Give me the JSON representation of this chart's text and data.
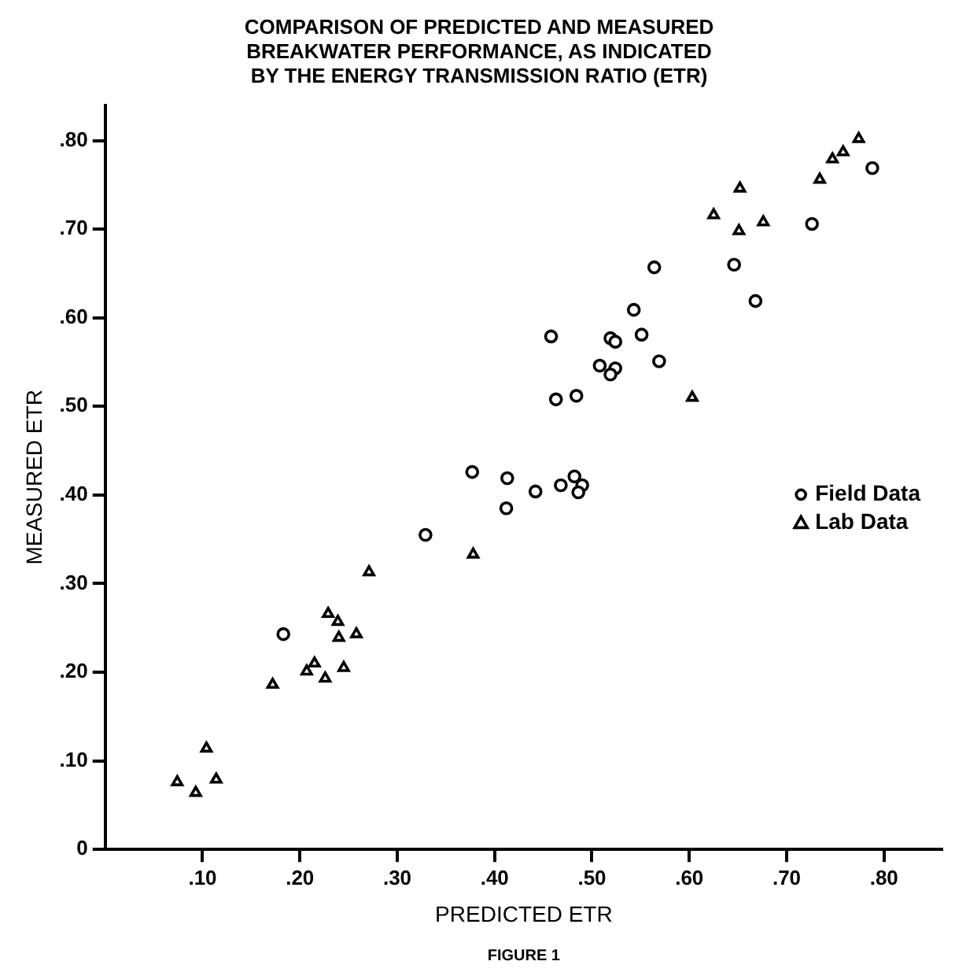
{
  "chart_data": {
    "type": "scatter",
    "title": "COMPARISON OF PREDICTED AND MEASURED\nBREAKWATER PERFORMANCE, AS INDICATED\nBY THE ENERGY TRANSMISSION RATIO (ETR)",
    "xlabel": "PREDICTED ETR",
    "ylabel": "MEASURED ETR",
    "annotations": [
      "FIGURE 1"
    ],
    "legend": "right",
    "xlim": [
      0,
      0.86
    ],
    "ylim": [
      0,
      0.84
    ],
    "xticks": [
      {
        "value": 0.1,
        "label": ".10"
      },
      {
        "value": 0.2,
        "label": ".20"
      },
      {
        "value": 0.3,
        "label": ".30"
      },
      {
        "value": 0.4,
        "label": ".40"
      },
      {
        "value": 0.5,
        "label": ".50"
      },
      {
        "value": 0.6,
        "label": ".60"
      },
      {
        "value": 0.7,
        "label": ".70"
      },
      {
        "value": 0.8,
        "label": ".80"
      }
    ],
    "yticks": [
      0,
      {
        "value": 0.1,
        "label": ".10"
      },
      {
        "value": 0.2,
        "label": ".20"
      },
      {
        "value": 0.3,
        "label": ".30"
      },
      {
        "value": 0.4,
        "label": ".40"
      },
      {
        "value": 0.5,
        "label": ".50"
      },
      {
        "value": 0.6,
        "label": ".60"
      },
      {
        "value": 0.7,
        "label": ".70"
      },
      {
        "value": 0.8,
        "label": ".80"
      }
    ],
    "series": [
      {
        "name": "Field Data",
        "color": "#000000",
        "marker": "circle",
        "x": [
          0.183,
          0.329,
          0.377,
          0.412,
          0.413,
          0.442,
          0.468,
          0.482,
          0.49,
          0.486,
          0.463,
          0.484,
          0.458,
          0.519,
          0.524,
          0.508,
          0.524,
          0.519,
          0.543,
          0.551,
          0.569,
          0.564,
          0.646,
          0.668,
          0.726,
          0.788
        ],
        "values": [
          0.243,
          0.355,
          0.426,
          0.385,
          0.419,
          0.404,
          0.411,
          0.421,
          0.411,
          0.403,
          0.508,
          0.512,
          0.579,
          0.577,
          0.573,
          0.546,
          0.543,
          0.536,
          0.609,
          0.581,
          0.551,
          0.657,
          0.66,
          0.619,
          0.706,
          0.769
        ]
      },
      {
        "name": "Lab Data",
        "color": "#000000",
        "marker": "triangle",
        "x": [
          0.074,
          0.093,
          0.104,
          0.114,
          0.172,
          0.207,
          0.215,
          0.226,
          0.229,
          0.239,
          0.24,
          0.245,
          0.258,
          0.271,
          0.378,
          0.603,
          0.625,
          0.652,
          0.651,
          0.676,
          0.734,
          0.747,
          0.758,
          0.774
        ],
        "values": [
          0.076,
          0.064,
          0.114,
          0.079,
          0.186,
          0.201,
          0.21,
          0.193,
          0.266,
          0.257,
          0.239,
          0.205,
          0.243,
          0.313,
          0.333,
          0.51,
          0.716,
          0.746,
          0.698,
          0.708,
          0.756,
          0.779,
          0.787,
          0.802
        ]
      }
    ]
  }
}
